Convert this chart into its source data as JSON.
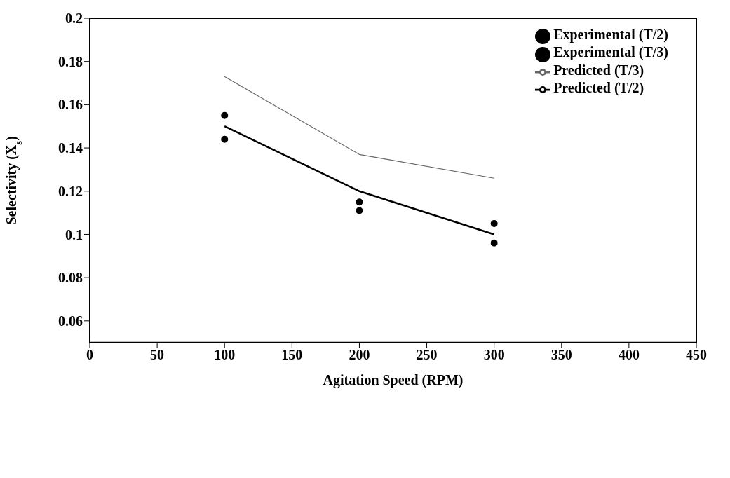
{
  "chart_data": {
    "type": "scatter",
    "xlabel": "Agitation Speed (RPM)",
    "ylabel": "Selectivity (X$_{s}$)",
    "xlim": [
      0,
      450
    ],
    "xticks": [
      0,
      50,
      100,
      150,
      200,
      250,
      300,
      350,
      400,
      450
    ],
    "ylim": [
      0.05,
      0.2
    ],
    "yticks": [
      0.06,
      0.08,
      0.1,
      0.12,
      0.14,
      0.16,
      0.18,
      0.2
    ],
    "grid": false,
    "legend": "top right",
    "series": [
      {
        "name": "Experimental (T/3)",
        "color": "#000000",
        "marker": "circle",
        "x": [
          100,
          200,
          300
        ],
        "values": [
          0.155,
          0.115,
          0.105
        ]
      },
      {
        "name": "Predicted  (T/3)",
        "type": "line",
        "color": "#666666",
        "marker": "none",
        "line_style": "solid",
        "x": [
          100,
          200,
          300
        ],
        "values": [
          0.173,
          0.137,
          0.126
        ]
      },
      {
        "name": "Experimental  (T/2)",
        "color": "#000000",
        "marker": "circle",
        "x": [
          100,
          200,
          300
        ],
        "values": [
          0.144,
          0.111,
          0.096
        ]
      },
      {
        "name": "Predicted (T/2)",
        "type": "line",
        "color": "#000000",
        "marker": "none",
        "line_style": "solid",
        "x": [
          100,
          200,
          300
        ],
        "values": [
          0.15,
          0.12,
          0.1
        ]
      }
    ]
  }
}
